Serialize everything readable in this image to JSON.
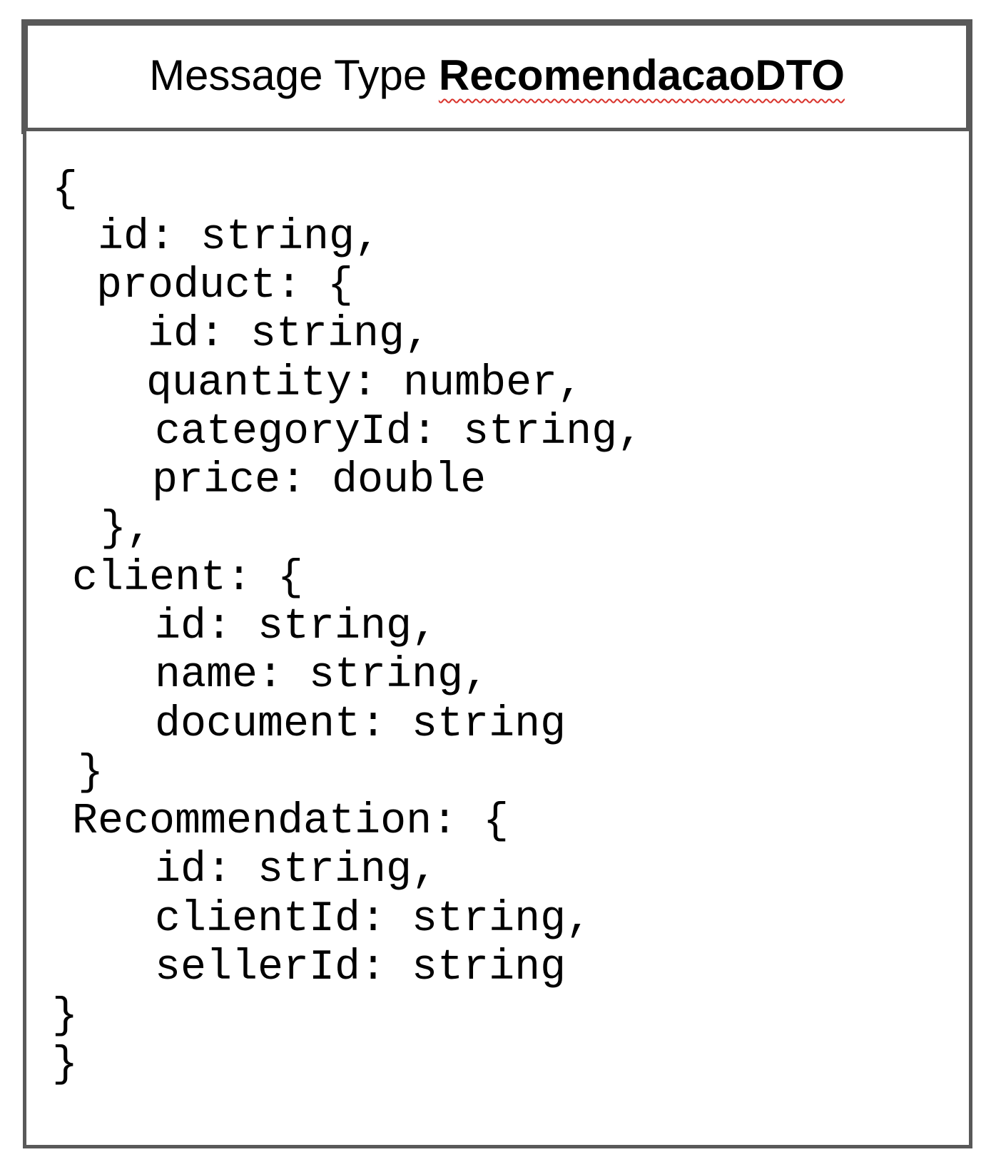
{
  "header": {
    "prefix": "Message Type ",
    "type_name": "RecomendacaoDTO"
  },
  "code_lines": [
    "{",
    "id: string,",
    "product: {",
    "id: string,",
    "quantity: number,",
    "categoryId: string,",
    "price: double",
    "},",
    "client: {",
    "id: string,",
    "name: string,",
    "document: string",
    "}",
    "Recommendation: {",
    "id: string,",
    "clientId: string,",
    "sellerId: string",
    "}",
    "}"
  ],
  "colors": {
    "border": "#595959",
    "spellcheck_underline": "#d9322b"
  }
}
